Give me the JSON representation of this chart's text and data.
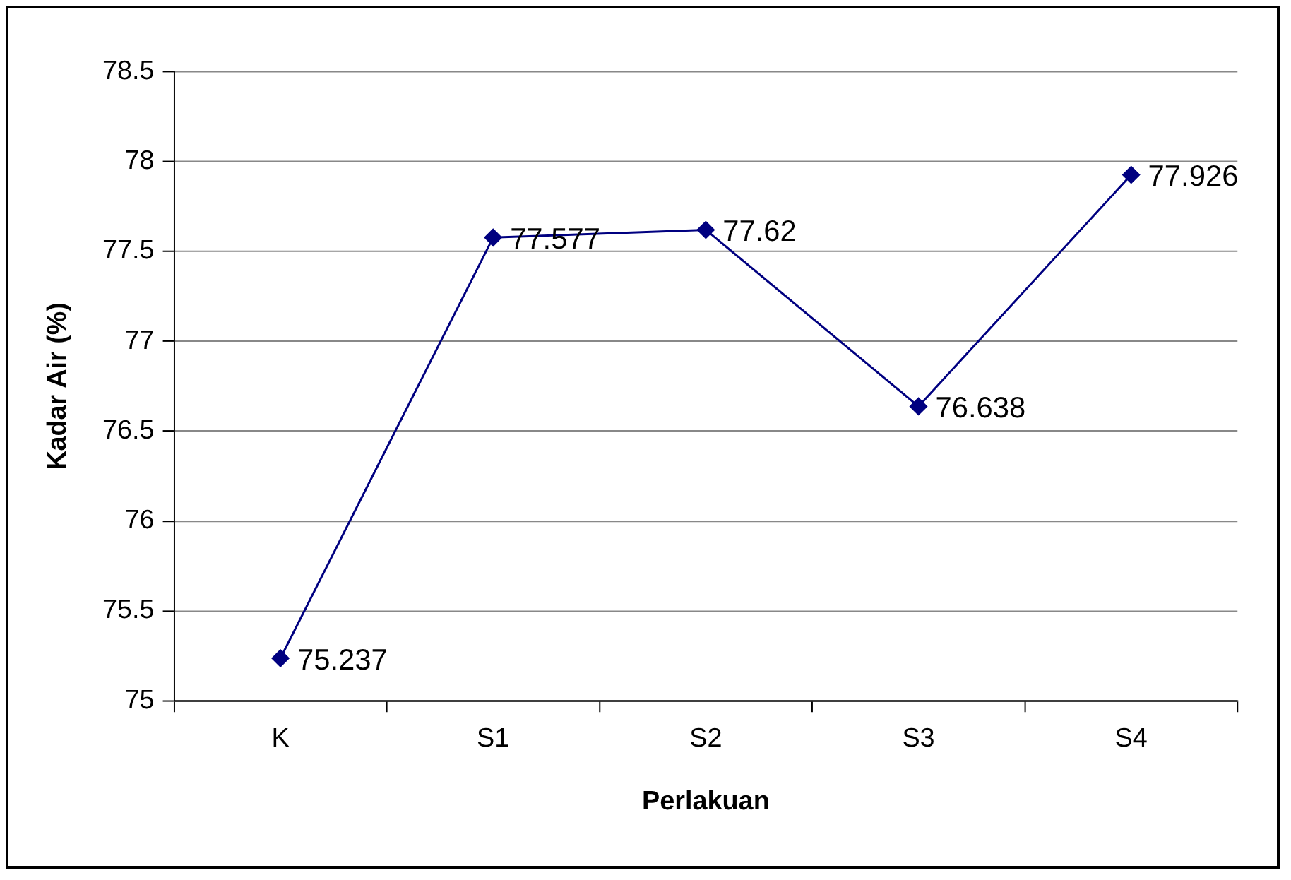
{
  "chart_data": {
    "type": "line",
    "xlabel": "Perlakuan",
    "ylabel": "Kadar Air (%)",
    "categories": [
      "K",
      "S1",
      "S2",
      "S3",
      "S4"
    ],
    "series": [
      {
        "color": "#000080",
        "values": [
          75.237,
          77.577,
          77.62,
          76.638,
          77.926
        ]
      }
    ],
    "ylim": [
      75,
      78.5
    ],
    "yticks": [
      75,
      75.5,
      76,
      76.5,
      77,
      77.5,
      78,
      78.5
    ],
    "grid": "y",
    "legend": false,
    "marker": "diamond",
    "line_style": "solid",
    "data_labels": true
  }
}
